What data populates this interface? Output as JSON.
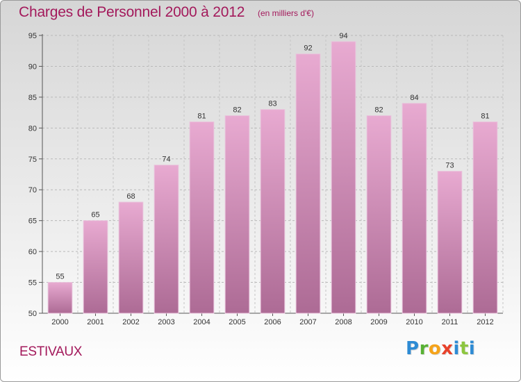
{
  "header": {
    "title": "Charges de Personnel 2000 à 2012",
    "subtitle": "(en milliers d'€)"
  },
  "footer": {
    "town": "ESTIVAUX",
    "logo_text": "Proxiti"
  },
  "colors": {
    "accent": "#a3195b",
    "bar_top": "#e7a9d0",
    "bar_bottom": "#b06d97"
  },
  "chart_data": {
    "type": "bar",
    "title": "Charges de Personnel 2000 à 2012",
    "subtitle": "(en milliers d'€)",
    "xlabel": "",
    "ylabel": "",
    "categories": [
      "2000",
      "2001",
      "2002",
      "2003",
      "2004",
      "2005",
      "2006",
      "2007",
      "2008",
      "2009",
      "2010",
      "2011",
      "2012"
    ],
    "values": [
      55,
      65,
      68,
      74,
      81,
      82,
      83,
      92,
      94,
      82,
      84,
      73,
      81
    ],
    "ylim": [
      50,
      95
    ],
    "yticks": [
      50,
      55,
      60,
      65,
      70,
      75,
      80,
      85,
      90,
      95
    ],
    "grid": true
  }
}
